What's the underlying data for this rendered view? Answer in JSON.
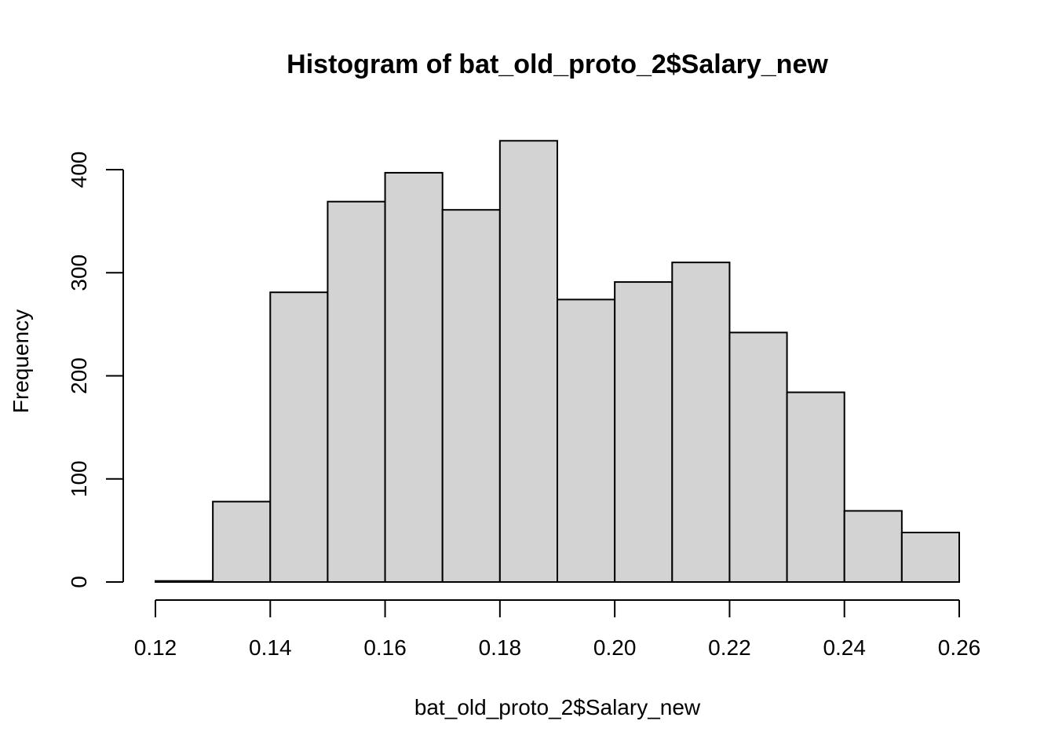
{
  "chart_data": {
    "type": "bar",
    "title": "Histogram of bat_old_proto_2$Salary_new",
    "xlabel": "bat_old_proto_2$Salary_new",
    "ylabel": "Frequency",
    "bin_edges": [
      0.12,
      0.13,
      0.14,
      0.15,
      0.16,
      0.17,
      0.18,
      0.19,
      0.2,
      0.21,
      0.22,
      0.23,
      0.24,
      0.25,
      0.26
    ],
    "values": [
      1,
      78,
      281,
      369,
      397,
      361,
      428,
      274,
      291,
      310,
      242,
      184,
      69,
      48
    ],
    "xlim": [
      0.12,
      0.26
    ],
    "ylim": [
      0,
      430
    ],
    "x_ticks": [
      0.12,
      0.14,
      0.16,
      0.18,
      0.2,
      0.22,
      0.24,
      0.26
    ],
    "x_tick_labels": [
      "0.12",
      "0.14",
      "0.16",
      "0.18",
      "0.20",
      "0.22",
      "0.24",
      "0.26"
    ],
    "y_ticks": [
      0,
      100,
      200,
      300,
      400
    ],
    "y_tick_labels": [
      "0",
      "100",
      "200",
      "300",
      "400"
    ],
    "bar_fill": "#d3d3d3",
    "bar_stroke": "#000000",
    "grid": false,
    "legend": "none"
  }
}
